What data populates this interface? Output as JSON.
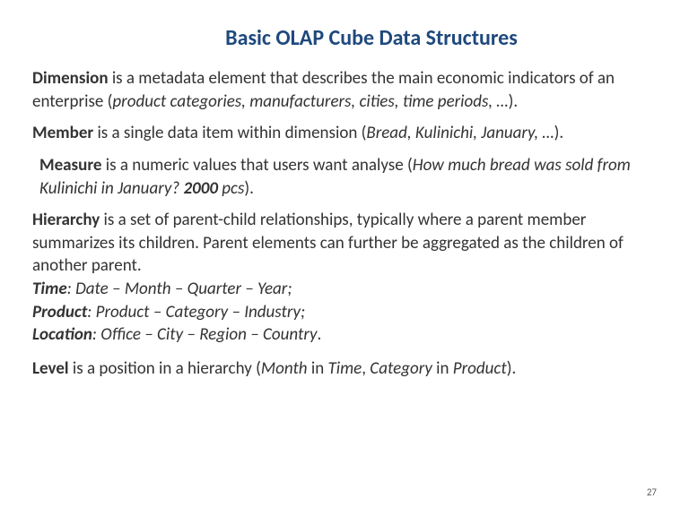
{
  "title": {
    "text": "Basic OLAP Cube Data Structures",
    "color": "#1f497d",
    "fontsize": 24
  },
  "body_fontsize": 19,
  "body_color": "#333333",
  "definitions": {
    "dimension": {
      "term": "Dimension",
      "rest1": " is a metadata element that describes the main economic indicators of an enterprise (",
      "italic": "product categories, manufacturers, cities, time periods, …",
      "rest2": ")."
    },
    "member": {
      "term": "Member",
      "rest1": " is a single data item within dimension (",
      "italic": "Bread, Kulinichi, January, …",
      "rest2": ")."
    },
    "measure": {
      "term": "Measure",
      "rest1": " is a numeric values that users want analyse (",
      "italic1": "How much bread was sold from Kulinichi in January? ",
      "bold_italic": "2000",
      "italic2": " pcs",
      "rest2": ")."
    }
  },
  "hierarchy": {
    "term": "Hierarchy",
    "rest": " is a set of parent-child relationships, typically where a parent member summarizes its children. Parent elements can further be aggregated as the children of another parent.",
    "lines": [
      {
        "label": "Time",
        "path": ": Date – Month – Quarter – Year;"
      },
      {
        "label": "Product",
        "path": ": Product – Category – Industry;"
      },
      {
        "label": "Location",
        "path": ": Office – City  – Region  – Country"
      }
    ],
    "trailing": "."
  },
  "level": {
    "term": "Level",
    "rest1": " is a position in a hierarchy (",
    "i1": "Month",
    "t1": " in ",
    "i2": "Time",
    "t2": ", ",
    "i3": "Category",
    "t3": " in ",
    "i4": "Product",
    "rest2": ")."
  },
  "page_number": "27"
}
